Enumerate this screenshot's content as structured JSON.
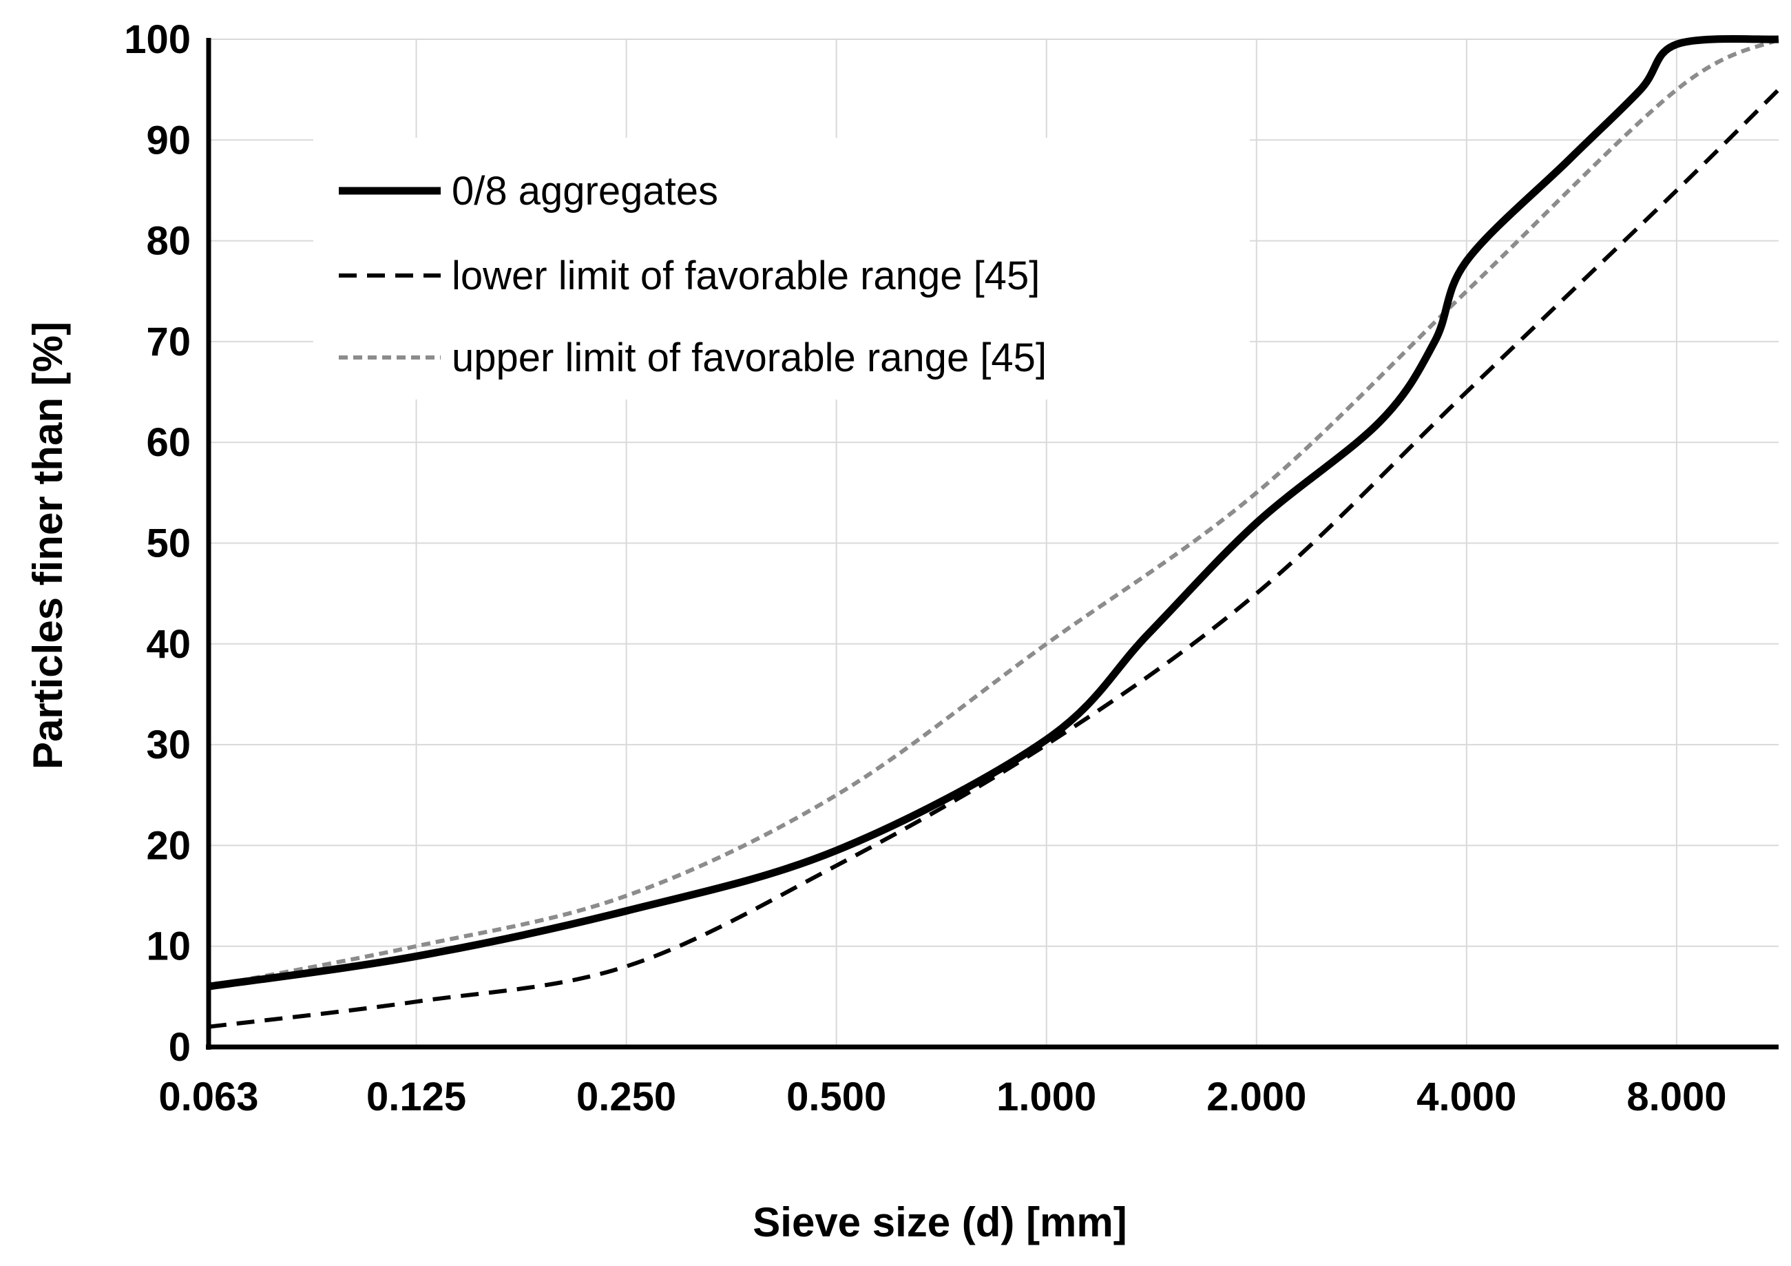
{
  "chart_data": {
    "type": "line",
    "title": "",
    "xlabel": "Sieve size (d) [mm]",
    "ylabel": "Particles finer than [%]",
    "x_scale": "log2",
    "x_ticks": [
      0.063,
      0.125,
      0.25,
      0.5,
      1,
      2,
      4,
      8
    ],
    "x_tick_labels": [
      "0.063",
      "0.125",
      "0.250",
      "0.500",
      "1.000",
      "2.000",
      "4.000",
      "8.000"
    ],
    "xlim": [
      0.063,
      11.2
    ],
    "ylim": [
      0,
      100
    ],
    "y_ticks": [
      0,
      10,
      20,
      30,
      40,
      50,
      60,
      70,
      80,
      90,
      100
    ],
    "y_tick_labels": [
      "0",
      "10",
      "20",
      "30",
      "40",
      "50",
      "60",
      "70",
      "80",
      "90",
      "100"
    ],
    "grid": true,
    "legend_position": "top-left",
    "series": [
      {
        "name": "0/8 aggregates",
        "style": "solid",
        "color": "#000000",
        "points": [
          [
            0.063,
            6
          ],
          [
            0.125,
            9
          ],
          [
            0.25,
            13.5
          ],
          [
            0.5,
            19.5
          ],
          [
            1,
            30.5
          ],
          [
            1.4,
            41
          ],
          [
            2,
            52
          ],
          [
            3,
            62
          ],
          [
            3.6,
            70
          ],
          [
            4,
            78
          ],
          [
            5.6,
            88
          ],
          [
            7.1,
            95
          ],
          [
            8,
            99.5
          ],
          [
            11.2,
            100
          ]
        ]
      },
      {
        "name": "lower limit of favorable range [45]",
        "style": "dashed",
        "color": "#000000",
        "points": [
          [
            0.063,
            2
          ],
          [
            0.125,
            4.5
          ],
          [
            0.25,
            8
          ],
          [
            0.5,
            18
          ],
          [
            1,
            30
          ],
          [
            2,
            45
          ],
          [
            4,
            65
          ],
          [
            8,
            85
          ],
          [
            11.2,
            95
          ]
        ]
      },
      {
        "name": "upper limit of favorable range [45]",
        "style": "dotted",
        "color": "#8c8c8c",
        "points": [
          [
            0.063,
            6
          ],
          [
            0.125,
            10
          ],
          [
            0.25,
            15
          ],
          [
            0.5,
            25
          ],
          [
            1,
            40
          ],
          [
            2,
            55
          ],
          [
            4,
            75
          ],
          [
            8,
            95
          ],
          [
            11.2,
            100
          ]
        ]
      }
    ]
  }
}
